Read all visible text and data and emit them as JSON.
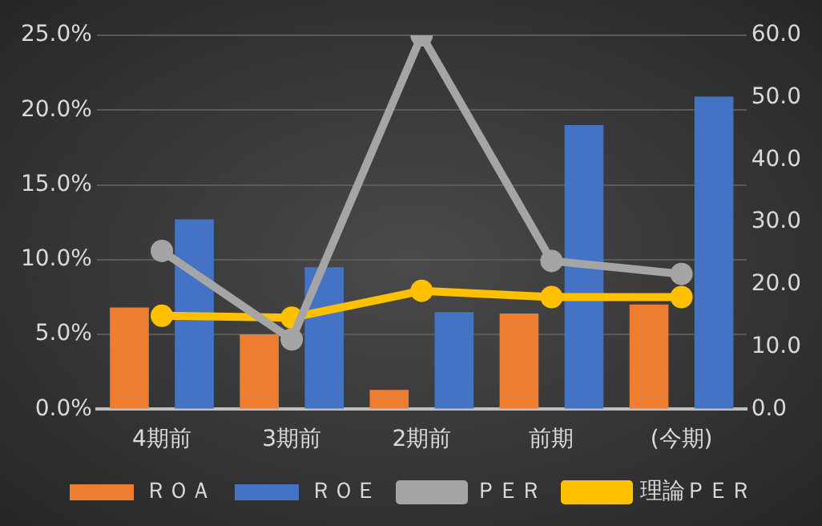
{
  "chart_data": {
    "type": "bar",
    "categories": [
      "4期前",
      "3期前",
      "2期前",
      "前期",
      "(今期)"
    ],
    "series": [
      {
        "name": "ＲＯＡ",
        "color": "#ed7d31",
        "values": [
          6.8,
          5.0,
          1.3,
          6.4,
          7.0
        ]
      },
      {
        "name": "ＲＯＥ",
        "color": "#4472c4",
        "values": [
          12.7,
          9.5,
          6.5,
          19.0,
          20.9
        ]
      },
      {
        "name": "ＰＥＲ",
        "type": "line",
        "axis": "y2",
        "color": "#a5a5a5",
        "values": [
          25.4,
          11.2,
          60,
          23.8,
          21.7
        ]
      },
      {
        "name": "理論ＰＥＲ",
        "type": "line",
        "axis": "y2",
        "color": "#ffc000",
        "values": [
          15.0,
          14.7,
          19.0,
          18.0,
          18.0
        ]
      }
    ],
    "ylim": [
      0,
      25
    ],
    "yticks": [
      {
        "value": 0,
        "label": "0.0%"
      },
      {
        "value": 5,
        "label": "5.0%"
      },
      {
        "value": 10,
        "label": "10.0%"
      },
      {
        "value": 15,
        "label": "15.0%"
      },
      {
        "value": 20,
        "label": "20.0%"
      },
      {
        "value": 25,
        "label": "25.0%"
      }
    ],
    "y2lim": [
      0,
      60
    ],
    "y2ticks": [
      {
        "value": 0,
        "label": "0.0"
      },
      {
        "value": 10,
        "label": "10.0"
      },
      {
        "value": 20,
        "label": "20.0"
      },
      {
        "value": 30,
        "label": "30.0"
      },
      {
        "value": 40,
        "label": "40.0"
      },
      {
        "value": 50,
        "label": "50.0"
      },
      {
        "value": 60,
        "label": "60.0"
      }
    ],
    "grid": "y",
    "legend": "bottom",
    "marker": "circle",
    "line_style": "solid"
  }
}
